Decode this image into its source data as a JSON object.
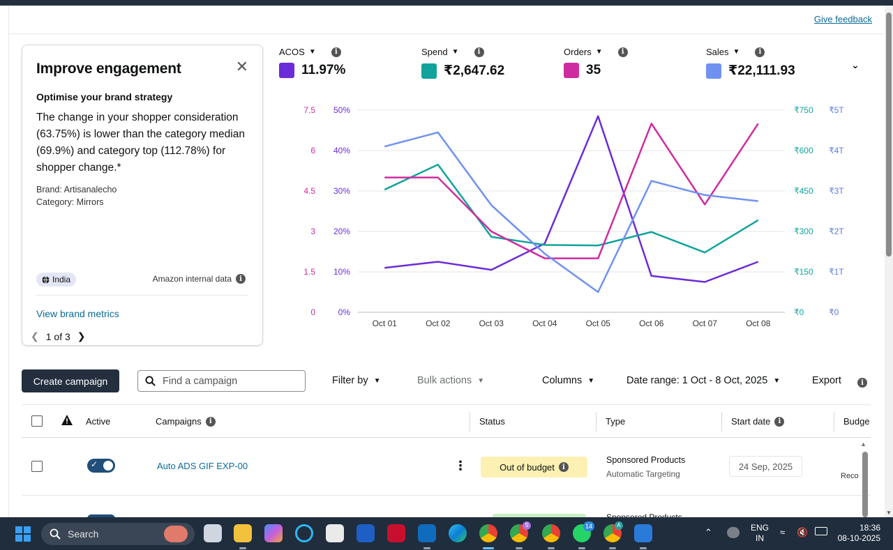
{
  "header": {
    "feedback_label": "Give feedback"
  },
  "engagement_card": {
    "title": "Improve engagement",
    "close_glyph": "✕",
    "subtitle": "Optimise your brand strategy",
    "body": "The change in your shopper consideration (63.75%) is lower than the category median (69.9%) and category top (112.78%) for shopper change.*",
    "brand": "Brand: Artisanalecho",
    "category": "Category: Mirrors",
    "country_chip": "India",
    "source_label": "Amazon internal data",
    "link_label": "View brand metrics",
    "pager": "1 of 3"
  },
  "metrics": [
    {
      "label": "ACOS",
      "value": "11.97%",
      "color": "#6b2bd9"
    },
    {
      "label": "Spend",
      "value": "₹2,647.62",
      "color": "#11a39b"
    },
    {
      "label": "Orders",
      "value": "35",
      "color": "#cf2ba0"
    },
    {
      "label": "Sales",
      "value": "₹22,111.93",
      "color": "#6f92f0"
    }
  ],
  "chart_data": {
    "type": "line",
    "categories": [
      "Oct 01",
      "Oct 02",
      "Oct 03",
      "Oct 04",
      "Oct 05",
      "Oct 06",
      "Oct 07",
      "Oct 08"
    ],
    "axes": {
      "orders_ticks": [
        "0",
        "1.5",
        "3",
        "4.5",
        "6",
        "7.5"
      ],
      "acos_ticks": [
        "0%",
        "10%",
        "20%",
        "30%",
        "40%",
        "50%"
      ],
      "spend_ticks": [
        "₹0",
        "₹150",
        "₹300",
        "₹450",
        "₹600",
        "₹750"
      ],
      "sales_ticks": [
        "₹0",
        "₹1T",
        "₹2T",
        "₹3T",
        "₹4T",
        "₹5T"
      ]
    },
    "series": [
      {
        "name": "ACOS",
        "axis": "acos",
        "max": 50,
        "values": [
          11,
          12.5,
          10.5,
          17,
          48.5,
          9,
          7.5,
          12.5
        ],
        "color": "#6b2bd9"
      },
      {
        "name": "Spend",
        "axis": "spend",
        "max": 750,
        "values": [
          455,
          548,
          280,
          250,
          248,
          298,
          222,
          342
        ],
        "color": "#11a39b"
      },
      {
        "name": "Orders",
        "axis": "orders",
        "max": 7.5,
        "values": [
          5,
          5,
          3,
          2,
          2,
          7,
          4,
          7
        ],
        "color": "#cf2ba0"
      },
      {
        "name": "Sales",
        "axis": "sales",
        "max": 5,
        "values": [
          4.1,
          4.45,
          2.65,
          1.45,
          0.5,
          3.25,
          2.9,
          2.75
        ],
        "color": "#6f92f0"
      }
    ],
    "ylim": [
      0,
      1
    ],
    "grid": true
  },
  "toolbar": {
    "create_label": "Create campaign",
    "search_placeholder": "Find a campaign",
    "filter_label": "Filter by",
    "bulk_label": "Bulk actions",
    "columns_label": "Columns",
    "date_range_label": "Date range: 1 Oct - 8 Oct, 2025",
    "export_label": "Export"
  },
  "table": {
    "headers": {
      "active": "Active",
      "campaigns": "Campaigns",
      "status": "Status",
      "type": "Type",
      "start_date": "Start date",
      "budget": "Budge"
    },
    "rows": [
      {
        "campaign": "Auto ADS GIF EXP-00",
        "status": "Out of budget",
        "type": "Sponsored Products",
        "targeting": "Automatic Targeting",
        "start_date": "24 Sep, 2025",
        "budget_note": "Reco"
      }
    ],
    "row2_type_partial": "Sponsored Products"
  },
  "taskbar": {
    "search_label": "Search",
    "language": "ENG",
    "region": "IN",
    "time": "18:36",
    "date": "08-10-2025",
    "badges": {
      "chrome_profile": "S",
      "whatsapp": "14",
      "chrome_profile2": "A"
    }
  }
}
